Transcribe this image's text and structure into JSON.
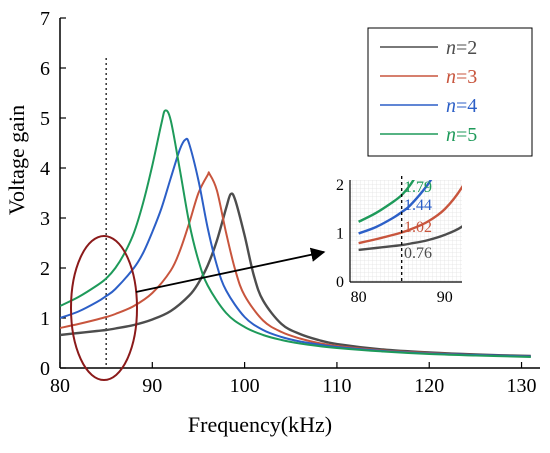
{
  "chart_data": {
    "type": "line",
    "xlabel": "Frequency(kHz)",
    "ylabel": "Voltage gain",
    "xlim": [
      80,
      132
    ],
    "ylim": [
      0,
      7
    ],
    "xticks": [
      80,
      90,
      100,
      110,
      120,
      130
    ],
    "yticks": [
      0,
      1,
      2,
      3,
      4,
      5,
      6,
      7
    ],
    "grid": false,
    "legend_position": "top-right",
    "reference_line_x": 85,
    "series": [
      {
        "name": "n=2",
        "name_italic": "n",
        "name_rest": "=2",
        "color": "#4d4d4d",
        "peak_x": 98.5,
        "peak_y": 3.48,
        "x": [
          80,
          82,
          84,
          85,
          86,
          88,
          90,
          92,
          94,
          95,
          96,
          97,
          98,
          98.5,
          99,
          100,
          101,
          102,
          104,
          106,
          108,
          110,
          115,
          120,
          125,
          131
        ],
        "y": [
          0.66,
          0.7,
          0.74,
          0.76,
          0.79,
          0.86,
          0.97,
          1.14,
          1.45,
          1.7,
          2.05,
          2.55,
          3.2,
          3.48,
          3.35,
          2.65,
          1.85,
          1.35,
          0.88,
          0.68,
          0.56,
          0.48,
          0.37,
          0.31,
          0.27,
          0.24
        ]
      },
      {
        "name": "n=3",
        "name_italic": "n",
        "name_rest": "=3",
        "color": "#c8553d",
        "peak_x": 96.2,
        "peak_y": 3.88,
        "x": [
          80,
          82,
          84,
          85,
          86,
          88,
          90,
          92,
          93,
          94,
          95,
          96,
          96.2,
          97,
          98,
          99,
          100,
          102,
          104,
          106,
          108,
          110,
          115,
          120,
          125,
          131
        ],
        "y": [
          0.8,
          0.88,
          0.97,
          1.02,
          1.08,
          1.24,
          1.5,
          1.95,
          2.35,
          2.9,
          3.5,
          3.86,
          3.88,
          3.55,
          2.7,
          1.95,
          1.45,
          0.95,
          0.72,
          0.59,
          0.5,
          0.44,
          0.35,
          0.3,
          0.26,
          0.23
        ]
      },
      {
        "name": "n=4",
        "name_italic": "n",
        "name_rest": "=4",
        "color": "#2c5fc7",
        "peak_x": 93.6,
        "peak_y": 4.57,
        "x": [
          80,
          82,
          84,
          85,
          86,
          88,
          89,
          90,
          91,
          92,
          93,
          93.6,
          94,
          95,
          96,
          97,
          98,
          100,
          102,
          104,
          106,
          108,
          110,
          115,
          120,
          125,
          131
        ],
        "y": [
          1.0,
          1.13,
          1.32,
          1.44,
          1.58,
          2.0,
          2.3,
          2.72,
          3.2,
          3.8,
          4.38,
          4.57,
          4.48,
          3.75,
          2.8,
          2.05,
          1.55,
          1.02,
          0.76,
          0.62,
          0.53,
          0.47,
          0.42,
          0.34,
          0.29,
          0.26,
          0.23
        ]
      },
      {
        "name": "n=5",
        "name_italic": "n",
        "name_rest": "=5",
        "color": "#1e9a5a",
        "peak_x": 91.4,
        "peak_y": 5.15,
        "x": [
          80,
          82,
          84,
          85,
          86,
          87,
          88,
          89,
          90,
          91,
          91.4,
          92,
          93,
          94,
          95,
          96,
          98,
          100,
          102,
          104,
          106,
          108,
          110,
          115,
          120,
          125,
          131
        ],
        "y": [
          1.24,
          1.42,
          1.65,
          1.79,
          2.0,
          2.3,
          2.7,
          3.3,
          4.05,
          4.9,
          5.15,
          4.95,
          3.95,
          2.9,
          2.15,
          1.65,
          1.1,
          0.82,
          0.66,
          0.56,
          0.49,
          0.44,
          0.4,
          0.33,
          0.28,
          0.25,
          0.22
        ]
      }
    ],
    "inset": {
      "xlim": [
        79,
        92
      ],
      "ylim": [
        0,
        2.1
      ],
      "xticks": [
        80,
        90
      ],
      "yticks": [
        0,
        1,
        2
      ],
      "grid": true,
      "reference_line_x": 85,
      "values": [
        "1.79",
        "1.44",
        "1.02",
        "0.76"
      ]
    }
  }
}
